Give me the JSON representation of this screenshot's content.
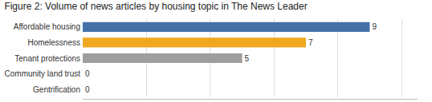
{
  "chart_data": {
    "type": "bar",
    "orientation": "horizontal",
    "title": "Figure 2: Volume of news articles by housing topic in The News Leader",
    "categories": [
      "Affordable housing",
      "Homelessness",
      "Tenant protections",
      "Community land trust",
      "Gentrification"
    ],
    "values": [
      9,
      7,
      5,
      0,
      0
    ],
    "colors": [
      "#4472a8",
      "#f0a820",
      "#9e9e9e",
      "#9e9e9e",
      "#9e9e9e"
    ],
    "xlim": [
      0,
      10.5
    ],
    "xticks": [
      0,
      2,
      4,
      6,
      8,
      10
    ],
    "grid": true,
    "data_labels": true,
    "tick_labels": "y"
  }
}
